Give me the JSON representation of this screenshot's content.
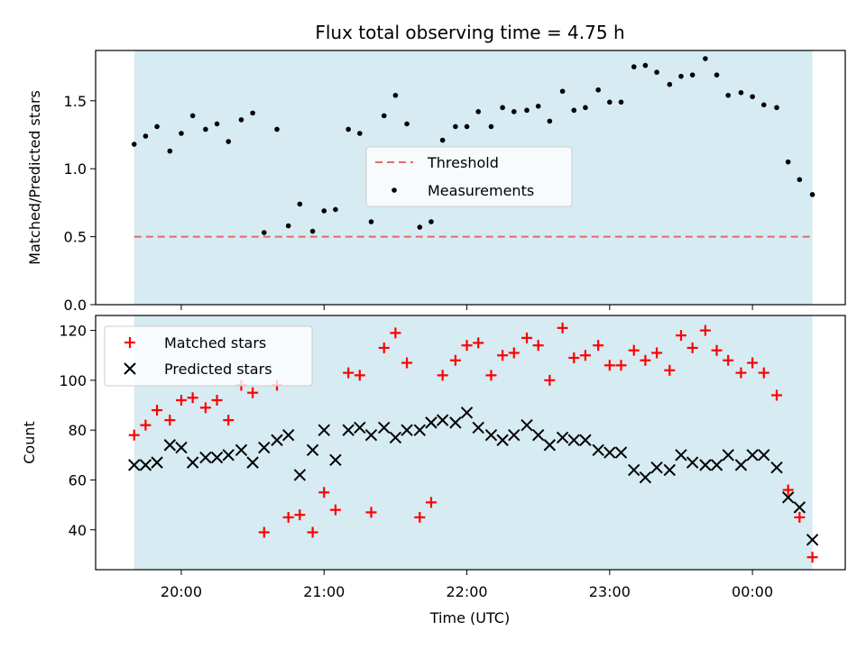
{
  "title": "Flux total observing time = 4.75 h",
  "colors": {
    "shade": "#add8e6",
    "threshold": "#e8676a",
    "measurement": "#000000",
    "matched": "#ff0000",
    "predicted": "#000000"
  },
  "chart_data": [
    {
      "type": "scatter",
      "panel": "top",
      "ylabel": "Matched/Predicted stars",
      "xlabel": "",
      "ylim": [
        0,
        1.87
      ],
      "yticks": [
        0.0,
        0.5,
        1.0,
        1.5
      ],
      "yticklabels": [
        "0.0",
        "0.5",
        "1.0",
        "1.5"
      ],
      "legend": {
        "placement": "center",
        "entries": [
          "Threshold",
          "Measurements"
        ]
      },
      "threshold": {
        "name": "Threshold",
        "value": 0.5
      },
      "series": [
        {
          "name": "Measurements",
          "x": [
            19.67,
            19.75,
            19.83,
            19.92,
            20.0,
            20.08,
            20.17,
            20.25,
            20.33,
            20.42,
            20.5,
            20.58,
            20.67,
            20.75,
            20.83,
            20.92,
            21.0,
            21.08,
            21.17,
            21.25,
            21.33,
            21.42,
            21.5,
            21.58,
            21.67,
            21.75,
            21.83,
            21.92,
            22.0,
            22.08,
            22.17,
            22.25,
            22.33,
            22.42,
            22.5,
            22.58,
            22.67,
            22.75,
            22.83,
            22.92,
            23.0,
            23.08,
            23.17,
            23.25,
            23.33,
            23.42,
            23.5,
            23.58,
            23.67,
            23.75,
            23.83,
            23.92,
            24.0,
            24.08,
            24.17,
            24.25,
            24.33,
            24.42
          ],
          "y": [
            1.18,
            1.24,
            1.31,
            1.13,
            1.26,
            1.39,
            1.29,
            1.33,
            1.2,
            1.36,
            1.41,
            0.53,
            1.29,
            0.58,
            0.74,
            0.54,
            0.69,
            0.7,
            1.29,
            1.26,
            0.61,
            1.39,
            1.54,
            1.33,
            0.57,
            0.61,
            1.21,
            1.31,
            1.31,
            1.42,
            1.31,
            1.45,
            1.42,
            1.43,
            1.46,
            1.35,
            1.57,
            1.43,
            1.45,
            1.58,
            1.49,
            1.49,
            1.75,
            1.76,
            1.71,
            1.62,
            1.68,
            1.69,
            1.81,
            1.69,
            1.54,
            1.56,
            1.53,
            1.47,
            1.45,
            1.05,
            0.92,
            0.81
          ]
        }
      ]
    },
    {
      "type": "scatter",
      "panel": "bottom",
      "xlabel": "Time (UTC)",
      "ylabel": "Count",
      "xlim": [
        19.4,
        24.65
      ],
      "ylim": [
        24,
        126
      ],
      "xticks": [
        20,
        21,
        22,
        23,
        24
      ],
      "xticklabels": [
        "20:00",
        "21:00",
        "22:00",
        "23:00",
        "00:00"
      ],
      "yticks": [
        40,
        60,
        80,
        100,
        120
      ],
      "yticklabels": [
        "40",
        "60",
        "80",
        "100",
        "120"
      ],
      "shaded_span": [
        19.67,
        24.42
      ],
      "legend": {
        "placement": "top-left",
        "entries": [
          "Matched stars",
          "Predicted stars"
        ]
      },
      "series": [
        {
          "name": "Matched stars",
          "x": [
            19.67,
            19.75,
            19.83,
            19.92,
            20.0,
            20.08,
            20.17,
            20.25,
            20.33,
            20.42,
            20.5,
            20.58,
            20.67,
            20.75,
            20.83,
            20.92,
            21.0,
            21.08,
            21.17,
            21.25,
            21.33,
            21.42,
            21.5,
            21.58,
            21.67,
            21.75,
            21.83,
            21.92,
            22.0,
            22.08,
            22.17,
            22.25,
            22.33,
            22.42,
            22.5,
            22.58,
            22.67,
            22.75,
            22.83,
            22.92,
            23.0,
            23.08,
            23.17,
            23.25,
            23.33,
            23.42,
            23.5,
            23.58,
            23.67,
            23.75,
            23.83,
            23.92,
            24.0,
            24.08,
            24.17,
            24.25,
            24.33,
            24.42
          ],
          "y": [
            78,
            82,
            88,
            84,
            92,
            93,
            89,
            92,
            84,
            98,
            95,
            39,
            98,
            45,
            46,
            39,
            55,
            48,
            103,
            102,
            47,
            113,
            119,
            107,
            45,
            51,
            102,
            108,
            114,
            115,
            102,
            110,
            111,
            117,
            114,
            100,
            121,
            109,
            110,
            114,
            106,
            106,
            112,
            108,
            111,
            104,
            118,
            113,
            120,
            112,
            108,
            103,
            107,
            103,
            94,
            56,
            45,
            29
          ]
        },
        {
          "name": "Predicted stars",
          "x": [
            19.67,
            19.75,
            19.83,
            19.92,
            20.0,
            20.08,
            20.17,
            20.25,
            20.33,
            20.42,
            20.5,
            20.58,
            20.67,
            20.75,
            20.83,
            20.92,
            21.0,
            21.08,
            21.17,
            21.25,
            21.33,
            21.42,
            21.5,
            21.58,
            21.67,
            21.75,
            21.83,
            21.92,
            22.0,
            22.08,
            22.17,
            22.25,
            22.33,
            22.42,
            22.5,
            22.58,
            22.67,
            22.75,
            22.83,
            22.92,
            23.0,
            23.08,
            23.17,
            23.25,
            23.33,
            23.42,
            23.5,
            23.58,
            23.67,
            23.75,
            23.83,
            23.92,
            24.0,
            24.08,
            24.17,
            24.25,
            24.33,
            24.42
          ],
          "y": [
            66,
            66,
            67,
            74,
            73,
            67,
            69,
            69,
            70,
            72,
            67,
            73,
            76,
            78,
            62,
            72,
            80,
            68,
            80,
            81,
            78,
            81,
            77,
            80,
            80,
            83,
            84,
            83,
            87,
            81,
            78,
            76,
            78,
            82,
            78,
            74,
            77,
            76,
            76,
            72,
            71,
            71,
            64,
            61,
            65,
            64,
            70,
            67,
            66,
            66,
            70,
            66,
            70,
            70,
            65,
            53,
            49,
            36
          ]
        }
      ]
    }
  ]
}
